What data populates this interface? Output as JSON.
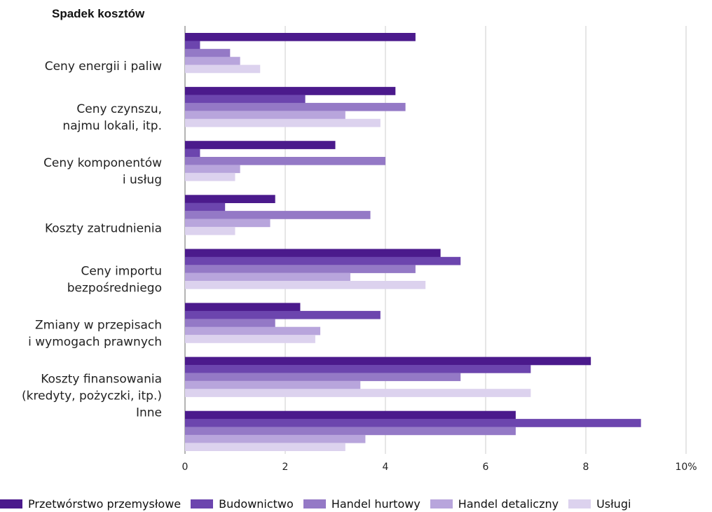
{
  "chart_data": {
    "type": "bar",
    "orientation": "horizontal",
    "title": "Spadek kosztów",
    "categories": [
      [
        "Ceny energii i paliw"
      ],
      [
        "Ceny czynszu,",
        "najmu lokali, itp."
      ],
      [
        "Ceny komponentów",
        "i usług"
      ],
      [
        "Koszty zatrudnienia"
      ],
      [
        "Ceny importu",
        "bezpośredniego"
      ],
      [
        "Zmiany w przepisach",
        "i wymogach prawnych"
      ],
      [
        "Koszty finansowania",
        "(kredyty, pożyczki, itp.)"
      ],
      [
        "Inne"
      ]
    ],
    "series": [
      {
        "name": "Przetwórstwo przemysłowe",
        "color": "#4B1A8C",
        "values": [
          4.6,
          4.2,
          3.0,
          1.8,
          5.1,
          2.3,
          8.1,
          6.6
        ]
      },
      {
        "name": "Budownictwo",
        "color": "#6C45AE",
        "values": [
          0.3,
          2.4,
          0.3,
          0.8,
          5.5,
          3.9,
          6.9,
          9.1
        ]
      },
      {
        "name": "Handel hurtowy",
        "color": "#9479C6",
        "values": [
          0.9,
          4.4,
          4.0,
          3.7,
          4.6,
          1.8,
          5.5,
          6.6
        ]
      },
      {
        "name": "Handel detaliczny",
        "color": "#B8A5DC",
        "values": [
          1.1,
          3.2,
          1.1,
          1.7,
          3.3,
          2.7,
          3.5,
          3.6
        ]
      },
      {
        "name": "Usługi",
        "color": "#DCD2EE",
        "values": [
          1.5,
          3.9,
          1.0,
          1.0,
          4.8,
          2.6,
          6.9,
          3.2
        ]
      }
    ],
    "xlim": [
      0,
      10
    ],
    "xticks": [
      "0",
      "2",
      "4",
      "6",
      "8",
      "10%"
    ],
    "xtick_values": [
      0,
      2,
      4,
      6,
      8,
      10
    ],
    "grid": true,
    "legend_position": "bottom"
  }
}
